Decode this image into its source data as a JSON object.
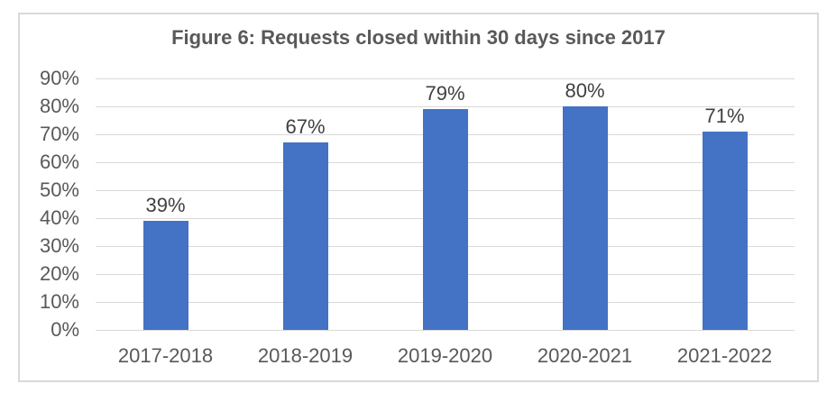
{
  "chart_data": {
    "type": "bar",
    "title": "Figure 6: Requests closed within 30 days since 2017",
    "categories": [
      "2017-2018",
      "2018-2019",
      "2019-2020",
      "2020-2021",
      "2021-2022"
    ],
    "values": [
      39,
      67,
      79,
      80,
      71
    ],
    "data_labels": [
      "39%",
      "67%",
      "79%",
      "80%",
      "71%"
    ],
    "y_tick_labels": [
      "0%",
      "10%",
      "20%",
      "30%",
      "40%",
      "50%",
      "60%",
      "70%",
      "80%",
      "90%"
    ],
    "y_tick_step": 10,
    "ylim": [
      0,
      90
    ],
    "grid": true,
    "legend": false,
    "xlabel": "",
    "ylabel": "",
    "colors": {
      "bar": "#4472C4",
      "title_text": "#595959",
      "axis_text": "#595959",
      "data_label_text": "#404040",
      "gridline": "#D9D9D9",
      "frame_border": "#D9D9D9",
      "background": "#FFFFFF"
    }
  }
}
